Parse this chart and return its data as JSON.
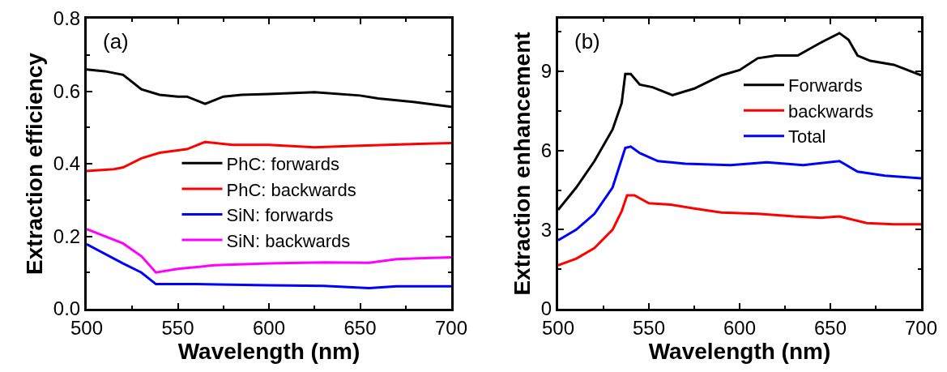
{
  "chart_data": [
    {
      "type": "line",
      "xlabel": "Wavelength (nm)",
      "ylabel": "Extraction efficiency",
      "annotations": [
        "(a)"
      ],
      "xlim": [
        500,
        700
      ],
      "ylim": [
        0,
        0.8
      ],
      "xticks": [
        500,
        550,
        600,
        650,
        700
      ],
      "yticks": [
        {
          "value": 0,
          "label": "0.0"
        },
        {
          "value": 0.2,
          "label": "0.2"
        },
        {
          "value": 0.4,
          "label": "0.4"
        },
        {
          "value": 0.6,
          "label": "0.6"
        },
        {
          "value": 0.8,
          "label": "0.8"
        }
      ],
      "legend": "center",
      "series": [
        {
          "name": "PhC: forwards",
          "color": "#000000",
          "x": [
            500,
            510,
            520,
            530,
            540,
            550,
            555,
            565,
            575,
            585,
            600,
            625,
            650,
            660,
            680,
            700
          ],
          "values": [
            0.66,
            0.655,
            0.645,
            0.605,
            0.59,
            0.585,
            0.585,
            0.565,
            0.585,
            0.59,
            0.592,
            0.597,
            0.588,
            0.58,
            0.57,
            0.557
          ]
        },
        {
          "name": "PhC: backwards",
          "color": "#ff0000",
          "x": [
            500,
            515,
            520,
            530,
            540,
            555,
            565,
            580,
            600,
            625,
            650,
            700
          ],
          "values": [
            0.38,
            0.385,
            0.39,
            0.415,
            0.43,
            0.44,
            0.46,
            0.452,
            0.452,
            0.445,
            0.45,
            0.457
          ]
        },
        {
          "name": "SiN: forwards",
          "color": "#0000ff",
          "x": [
            500,
            520,
            530,
            538,
            560,
            600,
            630,
            655,
            670,
            700
          ],
          "values": [
            0.178,
            0.125,
            0.1,
            0.068,
            0.068,
            0.065,
            0.063,
            0.057,
            0.062,
            0.062
          ]
        },
        {
          "name": "SiN: backwards",
          "color": "#ff00ff",
          "x": [
            500,
            520,
            530,
            538,
            550,
            570,
            600,
            630,
            655,
            670,
            700
          ],
          "values": [
            0.22,
            0.18,
            0.145,
            0.1,
            0.11,
            0.12,
            0.125,
            0.128,
            0.127,
            0.137,
            0.142
          ]
        }
      ]
    },
    {
      "type": "line",
      "xlabel": "Wavelength (nm)",
      "ylabel": "Extraction enhancement",
      "annotations": [
        "(b)"
      ],
      "xlim": [
        500,
        700
      ],
      "ylim": [
        0,
        11
      ],
      "xticks": [
        500,
        550,
        600,
        650,
        700
      ],
      "yticks": [
        0,
        3,
        6,
        9
      ],
      "legend": "top right",
      "series": [
        {
          "name": "Forwards",
          "color": "#000000",
          "x": [
            500,
            510,
            520,
            530,
            535,
            537,
            540,
            545,
            552,
            563,
            575,
            590,
            600,
            610,
            620,
            632,
            645,
            655,
            660,
            665,
            672,
            685,
            700
          ],
          "values": [
            3.75,
            4.6,
            5.6,
            6.8,
            7.8,
            8.9,
            8.9,
            8.5,
            8.4,
            8.1,
            8.35,
            8.85,
            9.05,
            9.5,
            9.6,
            9.6,
            10.1,
            10.45,
            10.2,
            9.6,
            9.4,
            9.25,
            8.85
          ]
        },
        {
          "name": "backwards",
          "color": "#ff0000",
          "x": [
            500,
            510,
            520,
            530,
            535,
            538,
            542,
            550,
            562,
            575,
            590,
            610,
            630,
            645,
            655,
            670,
            685,
            700
          ],
          "values": [
            1.65,
            1.9,
            2.3,
            3.0,
            3.7,
            4.3,
            4.3,
            4.0,
            3.95,
            3.8,
            3.65,
            3.6,
            3.5,
            3.45,
            3.5,
            3.25,
            3.2,
            3.2
          ]
        },
        {
          "name": "Total",
          "color": "#0000ff",
          "x": [
            500,
            510,
            520,
            530,
            537,
            540,
            545,
            555,
            570,
            595,
            615,
            635,
            655,
            665,
            680,
            700
          ],
          "values": [
            2.6,
            3.0,
            3.6,
            4.6,
            6.1,
            6.15,
            5.9,
            5.6,
            5.5,
            5.45,
            5.55,
            5.45,
            5.6,
            5.2,
            5.05,
            4.95
          ]
        }
      ]
    }
  ]
}
